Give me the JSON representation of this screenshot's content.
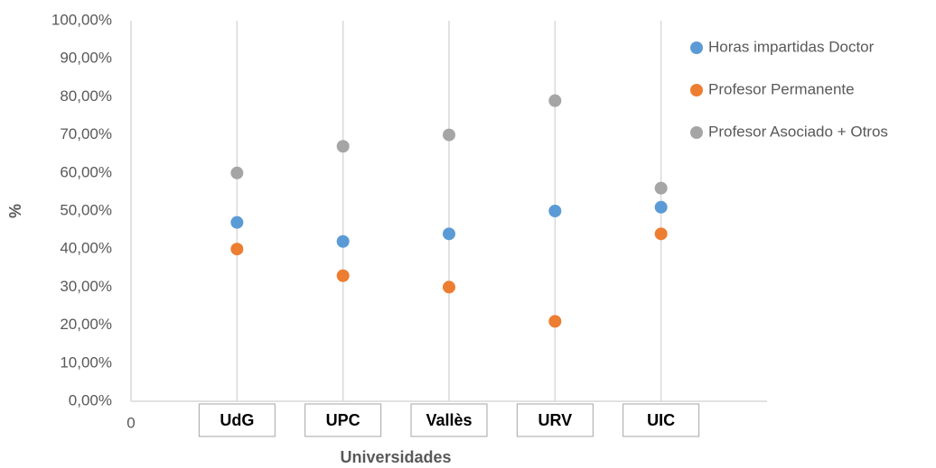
{
  "chart_data": {
    "type": "scatter",
    "x_label": "Universidades",
    "y_label": "%",
    "categories": [
      "UdG",
      "UPC",
      "Vallès",
      "URV",
      "UIC"
    ],
    "x": [
      1,
      2,
      3,
      4,
      5
    ],
    "xlim": [
      0,
      6
    ],
    "xticks": [
      0
    ],
    "ylim": [
      0,
      100
    ],
    "yticks": [
      {
        "value": 0,
        "label": "0,00%"
      },
      {
        "value": 10,
        "label": "10,00%"
      },
      {
        "value": 20,
        "label": "20,00%"
      },
      {
        "value": 30,
        "label": "30,00%"
      },
      {
        "value": 40,
        "label": "40,00%"
      },
      {
        "value": 50,
        "label": "50,00%"
      },
      {
        "value": 60,
        "label": "60,00%"
      },
      {
        "value": 70,
        "label": "70,00%"
      },
      {
        "value": 80,
        "label": "80,00%"
      },
      {
        "value": 90,
        "label": "90,00%"
      },
      {
        "value": 100,
        "label": "100,00%"
      }
    ],
    "grid": "x",
    "legend": "right",
    "series": [
      {
        "name": "Horas impartidas Doctor",
        "color": "#5b9bd5",
        "values": [
          47,
          42,
          44,
          50,
          51
        ]
      },
      {
        "name": "Profesor Permanente",
        "color": "#ed7d31",
        "values": [
          40,
          33,
          30,
          21,
          44
        ]
      },
      {
        "name": "Profesor Asociado + Otros",
        "color": "#a5a5a5",
        "values": [
          60,
          67,
          70,
          79,
          56
        ]
      }
    ]
  }
}
